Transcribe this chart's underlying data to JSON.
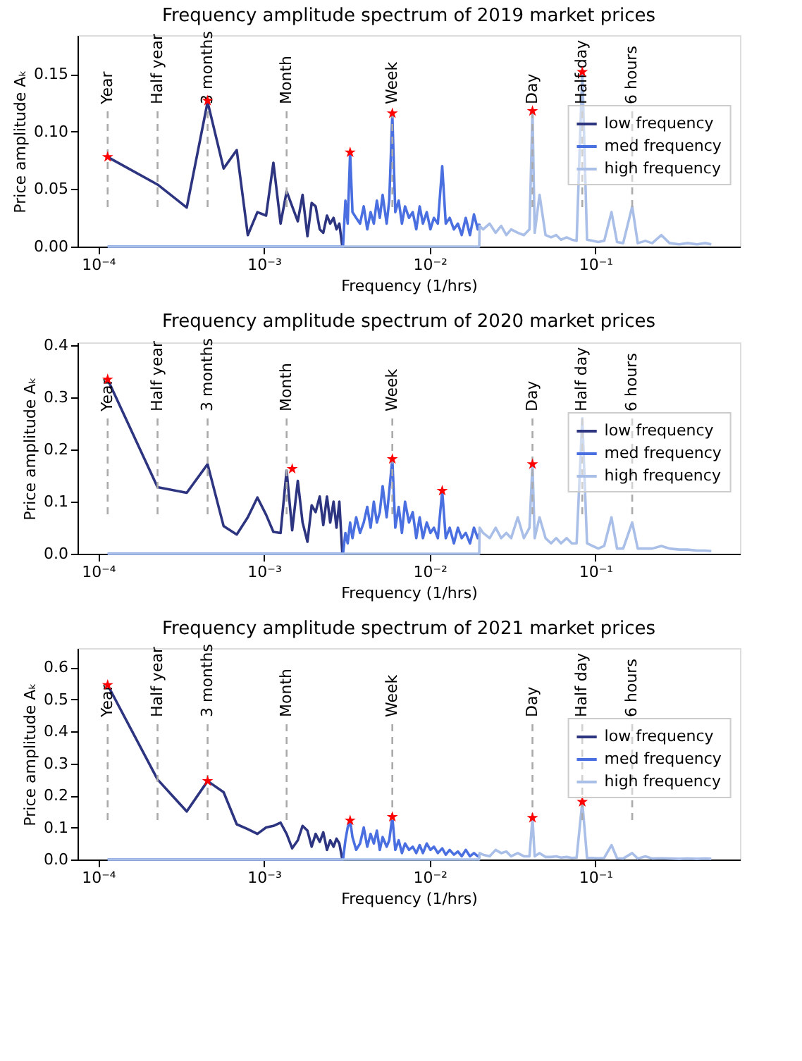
{
  "chart_data": [
    {
      "type": "line",
      "title": "Frequency amplitude spectrum of 2019 market prices",
      "xlabel": "Frequency (1/hrs)",
      "ylabel": "Price amplitude Aₖ",
      "log": "x",
      "grid": false,
      "legend": "right",
      "xlim": [
        7.5e-05,
        0.745
      ],
      "ylim": [
        0,
        0.184
      ],
      "xticks": [
        {
          "value": 0.0001,
          "label": "10⁻⁴"
        },
        {
          "value": 0.001,
          "label": "10⁻³"
        },
        {
          "value": 0.01,
          "label": "10⁻²"
        },
        {
          "value": 0.1,
          "label": "10⁻¹"
        }
      ],
      "yticks": [
        {
          "value": 0,
          "label": "0.00"
        },
        {
          "value": 0.05,
          "label": "0.05"
        },
        {
          "value": 0.1,
          "label": "0.10"
        },
        {
          "value": 0.15,
          "label": "0.15"
        }
      ],
      "series": [
        {
          "name": "low frequency",
          "type": "line",
          "color": "#2e3580",
          "x": [
            0.000114,
            0.000228,
            0.000342,
            0.000457,
            0.000571,
            0.000685,
            0.000799,
            0.000913,
            0.00103,
            0.00114,
            0.00126,
            0.00137,
            0.00148,
            0.0016,
            0.00171,
            0.00183,
            0.00194,
            0.00205,
            0.00217,
            0.00228,
            0.0024,
            0.00251,
            0.00263,
            0.00274,
            0.00285,
            0.00297
          ],
          "values": [
            0.078,
            0.054,
            0.034,
            0.126,
            0.068,
            0.084,
            0.01,
            0.03,
            0.027,
            0.073,
            0.02,
            0.048,
            0.035,
            0.022,
            0.045,
            0.009,
            0.038,
            0.035,
            0.015,
            0.012,
            0.027,
            0.02,
            0.025,
            0.015,
            0.02,
            0.0
          ]
        },
        {
          "name": "med frequency",
          "type": "line",
          "color": "#4a6fe0",
          "x": [
            0.000114,
            0.003,
            0.0031,
            0.0032,
            0.00331,
            0.00342,
            0.0036,
            0.0038,
            0.004,
            0.0042,
            0.0044,
            0.0046,
            0.0048,
            0.005,
            0.0052,
            0.0055,
            0.0057,
            0.00595,
            0.0062,
            0.0065,
            0.0068,
            0.0071,
            0.0075,
            0.0079,
            0.0083,
            0.0087,
            0.0091,
            0.0096,
            0.0101,
            0.0106,
            0.0112,
            0.0119,
            0.0125,
            0.0132,
            0.014,
            0.0148,
            0.0156,
            0.0165,
            0.0175,
            0.0185,
            0.0195,
            0.02
          ],
          "values": [
            0.0,
            0.0,
            0.04,
            0.02,
            0.082,
            0.03,
            0.025,
            0.02,
            0.035,
            0.015,
            0.03,
            0.02,
            0.04,
            0.025,
            0.045,
            0.02,
            0.04,
            0.115,
            0.03,
            0.04,
            0.02,
            0.035,
            0.025,
            0.03,
            0.015,
            0.035,
            0.02,
            0.03,
            0.015,
            0.025,
            0.02,
            0.07,
            0.02,
            0.025,
            0.015,
            0.02,
            0.01,
            0.025,
            0.01,
            0.028,
            0.015,
            0.02
          ]
        },
        {
          "name": "high frequency",
          "type": "line",
          "color": "#a9bfe8",
          "x": [
            0.000114,
            0.0199,
            0.02,
            0.021,
            0.023,
            0.025,
            0.027,
            0.029,
            0.031,
            0.034,
            0.037,
            0.04,
            0.0417,
            0.043,
            0.046,
            0.05,
            0.054,
            0.058,
            0.062,
            0.067,
            0.072,
            0.077,
            0.0833,
            0.089,
            0.096,
            0.104,
            0.113,
            0.125,
            0.135,
            0.147,
            0.1667,
            0.18,
            0.2,
            0.22,
            0.25,
            0.28,
            0.32,
            0.36,
            0.41,
            0.46,
            0.5
          ],
          "values": [
            0.0,
            0.0,
            0.018,
            0.015,
            0.02,
            0.012,
            0.018,
            0.01,
            0.015,
            0.012,
            0.01,
            0.015,
            0.118,
            0.012,
            0.045,
            0.01,
            0.008,
            0.01,
            0.006,
            0.008,
            0.006,
            0.005,
            0.152,
            0.006,
            0.005,
            0.004,
            0.005,
            0.03,
            0.004,
            0.003,
            0.035,
            0.003,
            0.005,
            0.003,
            0.01,
            0.003,
            0.002,
            0.003,
            0.002,
            0.003,
            0.002
          ]
        },
        {
          "type": "scatter",
          "marker": "star",
          "color": "#ff0000",
          "x": [
            0.000114,
            0.000457,
            0.00331,
            0.00595,
            0.0417,
            0.0833
          ],
          "values": [
            0.078,
            0.127,
            0.082,
            0.116,
            0.118,
            0.152
          ]
        }
      ],
      "ref_lines": [
        {
          "axis": "x",
          "value": 0.000114,
          "label": "Year",
          "color": "#aaaaaa",
          "line_style": "dashed"
        },
        {
          "axis": "x",
          "value": 0.000228,
          "label": "Half year",
          "color": "#aaaaaa",
          "line_style": "dashed"
        },
        {
          "axis": "x",
          "value": 0.000457,
          "label": "3 months",
          "color": "#aaaaaa",
          "line_style": "dashed"
        },
        {
          "axis": "x",
          "value": 0.00137,
          "label": "Month",
          "color": "#aaaaaa",
          "line_style": "dashed"
        },
        {
          "axis": "x",
          "value": 0.00595,
          "label": "Week",
          "color": "#aaaaaa",
          "line_style": "dashed"
        },
        {
          "axis": "x",
          "value": 0.0417,
          "label": "Day",
          "color": "#aaaaaa",
          "line_style": "dashed"
        },
        {
          "axis": "x",
          "value": 0.0833,
          "label": "Half day",
          "color": "#aaaaaa",
          "line_style": "dashed"
        },
        {
          "axis": "x",
          "value": 0.1667,
          "label": "6 hours",
          "color": "#aaaaaa",
          "line_style": "dashed"
        }
      ]
    },
    {
      "type": "line",
      "title": "Frequency amplitude spectrum of 2020 market prices",
      "xlabel": "Frequency (1/hrs)",
      "ylabel": "Price amplitude Aₖ",
      "log": "x",
      "grid": false,
      "legend": "right",
      "xlim": [
        7.5e-05,
        0.745
      ],
      "ylim": [
        0,
        0.406
      ],
      "xticks": [
        {
          "value": 0.0001,
          "label": "10⁻⁴"
        },
        {
          "value": 0.001,
          "label": "10⁻³"
        },
        {
          "value": 0.01,
          "label": "10⁻²"
        },
        {
          "value": 0.1,
          "label": "10⁻¹"
        }
      ],
      "yticks": [
        {
          "value": 0,
          "label": "0.0"
        },
        {
          "value": 0.1,
          "label": "0.1"
        },
        {
          "value": 0.2,
          "label": "0.2"
        },
        {
          "value": 0.3,
          "label": "0.3"
        },
        {
          "value": 0.4,
          "label": "0.4"
        }
      ],
      "series": [
        {
          "name": "low frequency",
          "type": "line",
          "color": "#2e3580",
          "x": [
            0.000114,
            0.000228,
            0.000342,
            0.000457,
            0.000571,
            0.000685,
            0.000799,
            0.000913,
            0.00103,
            0.00114,
            0.00126,
            0.00137,
            0.00148,
            0.0016,
            0.00171,
            0.00183,
            0.00194,
            0.00205,
            0.00217,
            0.00228,
            0.0024,
            0.00251,
            0.00263,
            0.00274,
            0.00285,
            0.00297
          ],
          "values": [
            0.335,
            0.128,
            0.117,
            0.172,
            0.053,
            0.037,
            0.07,
            0.108,
            0.075,
            0.042,
            0.04,
            0.16,
            0.045,
            0.14,
            0.06,
            0.023,
            0.093,
            0.08,
            0.11,
            0.055,
            0.11,
            0.06,
            0.1,
            0.05,
            0.1,
            0.0
          ]
        },
        {
          "name": "med frequency",
          "type": "line",
          "color": "#4a6fe0",
          "x": [
            0.000114,
            0.003,
            0.0031,
            0.0032,
            0.00331,
            0.00342,
            0.0036,
            0.0038,
            0.004,
            0.0042,
            0.0044,
            0.0046,
            0.0048,
            0.005,
            0.0052,
            0.0055,
            0.0057,
            0.00595,
            0.0062,
            0.0065,
            0.0068,
            0.0071,
            0.0075,
            0.0079,
            0.0083,
            0.0087,
            0.0091,
            0.0096,
            0.0101,
            0.0106,
            0.0112,
            0.0119,
            0.0125,
            0.0132,
            0.014,
            0.0148,
            0.0156,
            0.0165,
            0.0175,
            0.0185,
            0.0195,
            0.02
          ],
          "values": [
            0.0,
            0.0,
            0.04,
            0.02,
            0.06,
            0.03,
            0.07,
            0.04,
            0.06,
            0.09,
            0.05,
            0.1,
            0.06,
            0.08,
            0.13,
            0.07,
            0.12,
            0.182,
            0.05,
            0.09,
            0.04,
            0.1,
            0.06,
            0.08,
            0.03,
            0.07,
            0.03,
            0.06,
            0.04,
            0.05,
            0.03,
            0.121,
            0.03,
            0.05,
            0.02,
            0.05,
            0.03,
            0.04,
            0.02,
            0.05,
            0.03,
            0.04
          ]
        },
        {
          "name": "high frequency",
          "type": "line",
          "color": "#a9bfe8",
          "x": [
            0.000114,
            0.0199,
            0.02,
            0.021,
            0.023,
            0.025,
            0.027,
            0.029,
            0.031,
            0.034,
            0.037,
            0.04,
            0.0417,
            0.043,
            0.046,
            0.05,
            0.054,
            0.058,
            0.062,
            0.067,
            0.072,
            0.077,
            0.0833,
            0.089,
            0.096,
            0.104,
            0.113,
            0.125,
            0.135,
            0.147,
            0.1667,
            0.18,
            0.2,
            0.22,
            0.25,
            0.28,
            0.32,
            0.36,
            0.41,
            0.46,
            0.5
          ],
          "values": [
            0.0,
            0.0,
            0.05,
            0.04,
            0.03,
            0.05,
            0.03,
            0.04,
            0.03,
            0.07,
            0.03,
            0.05,
            0.172,
            0.03,
            0.07,
            0.03,
            0.02,
            0.03,
            0.02,
            0.03,
            0.02,
            0.02,
            0.26,
            0.02,
            0.015,
            0.01,
            0.015,
            0.07,
            0.01,
            0.01,
            0.06,
            0.01,
            0.01,
            0.01,
            0.015,
            0.01,
            0.008,
            0.008,
            0.006,
            0.006,
            0.005
          ]
        },
        {
          "type": "scatter",
          "marker": "star",
          "color": "#ff0000",
          "x": [
            0.000114,
            0.00148,
            0.00595,
            0.0119,
            0.0417
          ],
          "values": [
            0.335,
            0.163,
            0.182,
            0.121,
            0.172
          ]
        }
      ],
      "ref_lines": [
        {
          "axis": "x",
          "value": 0.000114,
          "label": "Year",
          "color": "#aaaaaa",
          "line_style": "dashed"
        },
        {
          "axis": "x",
          "value": 0.000228,
          "label": "Half year",
          "color": "#aaaaaa",
          "line_style": "dashed"
        },
        {
          "axis": "x",
          "value": 0.000457,
          "label": "3 months",
          "color": "#aaaaaa",
          "line_style": "dashed"
        },
        {
          "axis": "x",
          "value": 0.00137,
          "label": "Month",
          "color": "#aaaaaa",
          "line_style": "dashed"
        },
        {
          "axis": "x",
          "value": 0.00595,
          "label": "Week",
          "color": "#aaaaaa",
          "line_style": "dashed"
        },
        {
          "axis": "x",
          "value": 0.0417,
          "label": "Day",
          "color": "#aaaaaa",
          "line_style": "dashed"
        },
        {
          "axis": "x",
          "value": 0.0833,
          "label": "Half day",
          "color": "#aaaaaa",
          "line_style": "dashed"
        },
        {
          "axis": "x",
          "value": 0.1667,
          "label": "6 hours",
          "color": "#aaaaaa",
          "line_style": "dashed"
        }
      ]
    },
    {
      "type": "line",
      "title": "Frequency amplitude spectrum of 2021 market prices",
      "xlabel": "Frequency (1/hrs)",
      "ylabel": "Price amplitude Aₖ",
      "log": "x",
      "grid": false,
      "legend": "right",
      "xlim": [
        7.5e-05,
        0.745
      ],
      "ylim": [
        0,
        0.66
      ],
      "xticks": [
        {
          "value": 0.0001,
          "label": "10⁻⁴"
        },
        {
          "value": 0.001,
          "label": "10⁻³"
        },
        {
          "value": 0.01,
          "label": "10⁻²"
        },
        {
          "value": 0.1,
          "label": "10⁻¹"
        }
      ],
      "yticks": [
        {
          "value": 0,
          "label": "0.0"
        },
        {
          "value": 0.1,
          "label": "0.1"
        },
        {
          "value": 0.2,
          "label": "0.2"
        },
        {
          "value": 0.3,
          "label": "0.3"
        },
        {
          "value": 0.4,
          "label": "0.4"
        },
        {
          "value": 0.5,
          "label": "0.5"
        },
        {
          "value": 0.6,
          "label": "0.6"
        }
      ],
      "series": [
        {
          "name": "low frequency",
          "type": "line",
          "color": "#2e3580",
          "x": [
            0.000114,
            0.000228,
            0.000342,
            0.000457,
            0.000571,
            0.000685,
            0.000799,
            0.000913,
            0.00103,
            0.00114,
            0.00126,
            0.00137,
            0.00148,
            0.0016,
            0.00171,
            0.00183,
            0.00194,
            0.00205,
            0.00217,
            0.00228,
            0.0024,
            0.00251,
            0.00263,
            0.00274,
            0.00285,
            0.00297
          ],
          "values": [
            0.545,
            0.25,
            0.15,
            0.245,
            0.21,
            0.11,
            0.095,
            0.08,
            0.1,
            0.105,
            0.115,
            0.08,
            0.035,
            0.06,
            0.105,
            0.09,
            0.04,
            0.08,
            0.055,
            0.085,
            0.03,
            0.06,
            0.04,
            0.065,
            0.05,
            0.0
          ]
        },
        {
          "name": "med frequency",
          "type": "line",
          "color": "#4a6fe0",
          "x": [
            0.000114,
            0.003,
            0.0031,
            0.0032,
            0.00331,
            0.00342,
            0.0036,
            0.0038,
            0.004,
            0.0042,
            0.0044,
            0.0046,
            0.0048,
            0.005,
            0.0052,
            0.0055,
            0.0057,
            0.00595,
            0.0062,
            0.0065,
            0.0068,
            0.0071,
            0.0075,
            0.0079,
            0.0083,
            0.0087,
            0.0091,
            0.0096,
            0.0101,
            0.0106,
            0.0112,
            0.0119,
            0.0125,
            0.0132,
            0.014,
            0.0148,
            0.0156,
            0.0165,
            0.0175,
            0.0185,
            0.0195,
            0.02
          ],
          "values": [
            0.0,
            0.0,
            0.06,
            0.1,
            0.122,
            0.07,
            0.03,
            0.05,
            0.1,
            0.04,
            0.08,
            0.05,
            0.09,
            0.03,
            0.07,
            0.04,
            0.06,
            0.133,
            0.03,
            0.06,
            0.02,
            0.05,
            0.03,
            0.04,
            0.02,
            0.045,
            0.02,
            0.05,
            0.03,
            0.04,
            0.02,
            0.035,
            0.015,
            0.03,
            0.015,
            0.025,
            0.01,
            0.03,
            0.01,
            0.02,
            0.01,
            0.015
          ]
        },
        {
          "name": "high frequency",
          "type": "line",
          "color": "#a9bfe8",
          "x": [
            0.000114,
            0.0199,
            0.02,
            0.021,
            0.023,
            0.025,
            0.027,
            0.029,
            0.031,
            0.034,
            0.037,
            0.04,
            0.0417,
            0.043,
            0.046,
            0.05,
            0.054,
            0.058,
            0.062,
            0.067,
            0.072,
            0.077,
            0.0833,
            0.089,
            0.096,
            0.104,
            0.113,
            0.125,
            0.135,
            0.147,
            0.1667,
            0.18,
            0.2,
            0.22,
            0.25,
            0.28,
            0.32,
            0.36,
            0.41,
            0.46,
            0.5
          ],
          "values": [
            0.0,
            0.0,
            0.02,
            0.015,
            0.01,
            0.03,
            0.02,
            0.025,
            0.01,
            0.02,
            0.01,
            0.01,
            0.13,
            0.01,
            0.02,
            0.008,
            0.008,
            0.01,
            0.006,
            0.008,
            0.005,
            0.006,
            0.18,
            0.005,
            0.005,
            0.004,
            0.005,
            0.045,
            0.004,
            0.003,
            0.02,
            0.003,
            0.01,
            0.003,
            0.004,
            0.003,
            0.002,
            0.003,
            0.002,
            0.003,
            0.002
          ]
        },
        {
          "type": "scatter",
          "marker": "star",
          "color": "#ff0000",
          "x": [
            0.000114,
            0.000457,
            0.00331,
            0.00595,
            0.0417,
            0.0833
          ],
          "values": [
            0.545,
            0.245,
            0.122,
            0.133,
            0.13,
            0.18
          ]
        }
      ],
      "ref_lines": [
        {
          "axis": "x",
          "value": 0.000114,
          "label": "Year",
          "color": "#aaaaaa",
          "line_style": "dashed"
        },
        {
          "axis": "x",
          "value": 0.000228,
          "label": "Half year",
          "color": "#aaaaaa",
          "line_style": "dashed"
        },
        {
          "axis": "x",
          "value": 0.000457,
          "label": "3 months",
          "color": "#aaaaaa",
          "line_style": "dashed"
        },
        {
          "axis": "x",
          "value": 0.00137,
          "label": "Month",
          "color": "#aaaaaa",
          "line_style": "dashed"
        },
        {
          "axis": "x",
          "value": 0.00595,
          "label": "Week",
          "color": "#aaaaaa",
          "line_style": "dashed"
        },
        {
          "axis": "x",
          "value": 0.0417,
          "label": "Day",
          "color": "#aaaaaa",
          "line_style": "dashed"
        },
        {
          "axis": "x",
          "value": 0.0833,
          "label": "Half day",
          "color": "#aaaaaa",
          "line_style": "dashed"
        },
        {
          "axis": "x",
          "value": 0.1667,
          "label": "6 hours",
          "color": "#aaaaaa",
          "line_style": "dashed"
        }
      ]
    }
  ]
}
